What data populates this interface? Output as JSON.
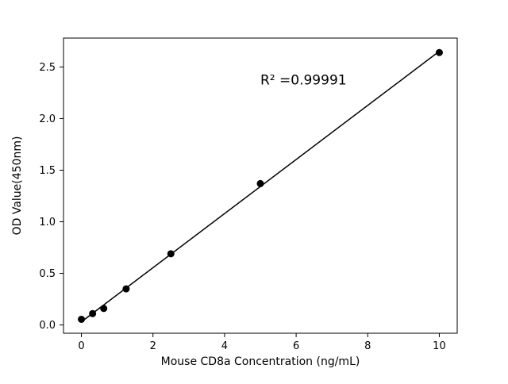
{
  "chart_data": {
    "type": "scatter",
    "x": [
      0,
      0.3125,
      0.625,
      1.25,
      2.5,
      5,
      10
    ],
    "y": [
      0.055,
      0.11,
      0.16,
      0.35,
      0.69,
      1.37,
      2.64
    ],
    "title": "",
    "xlabel": "Mouse CD8a Concentration (ng/mL)",
    "ylabel": "OD Value(450nm)",
    "xlim": [
      -0.5,
      10.5
    ],
    "ylim": [
      -0.08,
      2.78
    ],
    "xticks": [
      0,
      2,
      4,
      6,
      8,
      10
    ],
    "yticks": [
      0.0,
      0.5,
      1.0,
      1.5,
      2.0,
      2.5
    ],
    "grid": false,
    "legend": "none",
    "marker_color": "#000000",
    "line_color": "#000000",
    "annotation": {
      "text": "R² =0.99991",
      "x": 5,
      "y": 2.33
    }
  }
}
